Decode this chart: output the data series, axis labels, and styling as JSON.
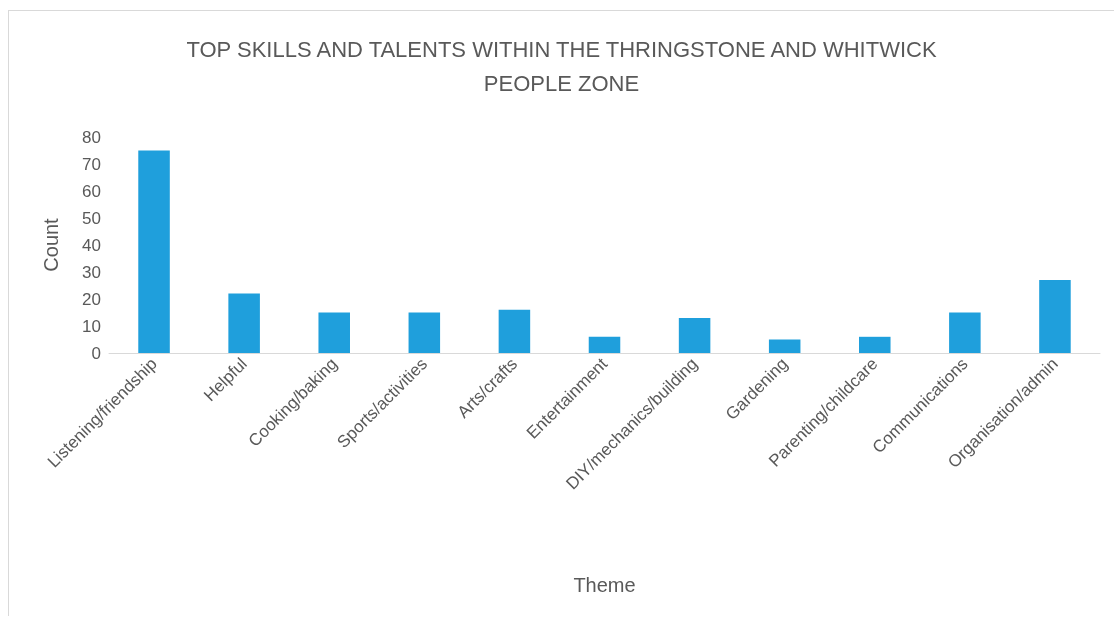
{
  "chart_data": {
    "type": "bar",
    "title": "TOP SKILLS AND TALENTS WITHIN THE THRINGSTONE AND WHITWICK\nPEOPLE ZONE",
    "xlabel": "Theme",
    "ylabel": "Count",
    "categories": [
      "Listening/friendship",
      "Helpful",
      "Cooking/baking",
      "Sports/activities",
      "Arts/crafts",
      "Entertainment",
      "DIY/mechanics/building",
      "Gardening",
      "Parenting/childcare",
      "Communications",
      "Organisation/admin"
    ],
    "values": [
      75,
      22,
      15,
      15,
      16,
      6,
      13,
      5,
      6,
      15,
      27
    ],
    "color": "#1f9fdc",
    "ylim": [
      0,
      80
    ],
    "yticks": [
      0,
      10,
      20,
      30,
      40,
      50,
      60,
      70,
      80
    ],
    "grid": false
  }
}
